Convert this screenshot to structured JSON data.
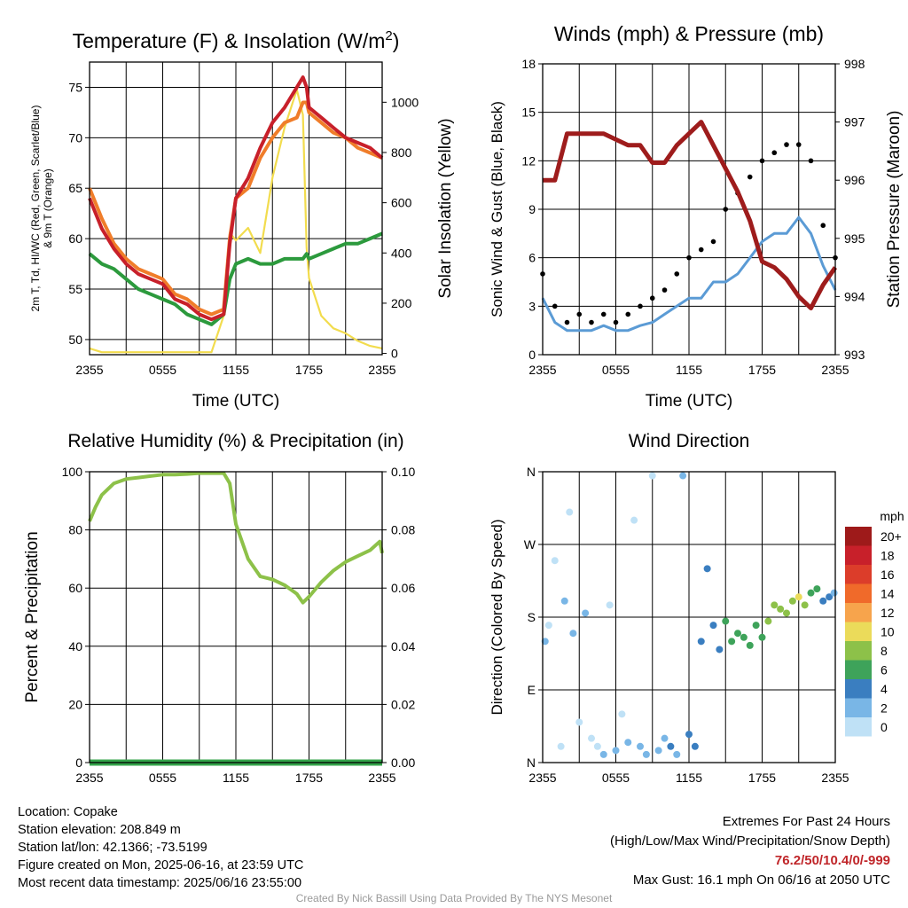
{
  "chart_data": [
    {
      "type": "line",
      "title": "Temperature (F) & Insolation (W/m²)",
      "xlabel": "Time (UTC)",
      "ylabel_lines": [
        "2m T, Td, HI/WC (Red, Green, Scarlet/Blue)",
        "& 9m T (Orange)"
      ],
      "ylabel2": "Solar Insolation (Yellow)",
      "xticks": [
        "2355",
        "0555",
        "1155",
        "1755",
        "2355"
      ],
      "yticks": [
        50,
        55,
        60,
        65,
        70,
        75
      ],
      "ylim": [
        48.5,
        77.5
      ],
      "y2ticks": [
        0,
        200,
        400,
        600,
        800,
        1000
      ],
      "y2lim": [
        -5,
        1160
      ],
      "grid": true,
      "x_hours": [
        0,
        1,
        2,
        3,
        4,
        5,
        6,
        7,
        8,
        9,
        10,
        11,
        11.5,
        12,
        13,
        14,
        15,
        16,
        17,
        17.5,
        17.8,
        18,
        19,
        20,
        21,
        22,
        23,
        24
      ],
      "series": [
        {
          "color": "#2c9a3d",
          "values": [
            58.5,
            57.5,
            57.0,
            56.0,
            55.0,
            54.5,
            54.0,
            53.5,
            52.5,
            52.0,
            51.5,
            52.5,
            56.0,
            57.5,
            58.0,
            57.5,
            57.5,
            58.0,
            58.0,
            58.0,
            58.5,
            58.0,
            58.5,
            59.0,
            59.5,
            59.5,
            60.0,
            60.5
          ]
        },
        {
          "color": "#f07d2a",
          "values": [
            65.0,
            62.0,
            59.5,
            58.0,
            57.0,
            56.5,
            56.0,
            54.5,
            54.0,
            53.0,
            52.5,
            53.0,
            60.0,
            64.0,
            65.0,
            68.0,
            70.0,
            71.5,
            72.0,
            73.5,
            73.5,
            72.5,
            71.5,
            70.5,
            70.0,
            69.0,
            68.5,
            68.0
          ]
        },
        {
          "color": "#c8202a",
          "values": [
            64.0,
            61.0,
            59.0,
            57.5,
            56.5,
            56.0,
            55.5,
            54.0,
            53.5,
            52.5,
            52.0,
            52.5,
            59.5,
            64.0,
            66.0,
            69.0,
            71.5,
            73.0,
            75.0,
            76.0,
            75.0,
            73.0,
            72.0,
            71.0,
            70.0,
            69.5,
            69.0,
            68.0
          ]
        },
        {
          "color": "#f2dc4e",
          "axis": "y2",
          "values": [
            20,
            5,
            5,
            5,
            5,
            5,
            5,
            5,
            5,
            5,
            5,
            150,
            480,
            450,
            500,
            400,
            700,
            900,
            1050,
            950,
            420,
            300,
            150,
            100,
            80,
            50,
            30,
            20
          ]
        }
      ]
    },
    {
      "type": "line",
      "title": "Winds (mph) & Pressure (mb)",
      "xlabel": "Time (UTC)",
      "ylabel": "Sonic Wind & Gust (Blue, Black)",
      "ylabel2": "Station Pressure (Maroon)",
      "xticks": [
        "2355",
        "0555",
        "1155",
        "1755",
        "2355"
      ],
      "yticks": [
        0,
        3,
        6,
        9,
        12,
        15,
        18
      ],
      "ylim": [
        0,
        18
      ],
      "y2ticks": [
        993,
        994,
        995,
        996,
        997,
        998
      ],
      "y2lim": [
        993,
        998
      ],
      "grid": true,
      "x_hours": [
        0,
        1,
        2,
        3,
        4,
        5,
        6,
        7,
        8,
        9,
        10,
        11,
        12,
        13,
        14,
        15,
        16,
        17,
        18,
        19,
        20,
        21,
        22,
        23,
        24
      ],
      "series": [
        {
          "color": "#5b9bd5",
          "values": [
            3.5,
            2.0,
            1.5,
            1.5,
            1.5,
            1.8,
            1.5,
            1.5,
            1.8,
            2.0,
            2.5,
            3.0,
            3.5,
            3.5,
            4.5,
            4.5,
            5.0,
            6.0,
            7.0,
            7.5,
            7.5,
            8.5,
            7.5,
            5.5,
            4.0
          ]
        },
        {
          "color": "#000000",
          "mode": "points",
          "values": [
            5.0,
            3.0,
            2.0,
            2.5,
            2.0,
            2.5,
            2.0,
            2.5,
            3.0,
            3.5,
            4.0,
            5.0,
            6.0,
            6.5,
            7.0,
            9.0,
            10.0,
            11.0,
            12.0,
            12.5,
            13.0,
            13.0,
            12.0,
            8.0,
            6.0
          ]
        },
        {
          "color": "#9e1c1c",
          "axis": "y2",
          "values": [
            996.0,
            996.0,
            996.8,
            996.8,
            996.8,
            996.8,
            996.7,
            996.6,
            996.6,
            996.3,
            996.3,
            996.6,
            996.8,
            997.0,
            996.6,
            996.2,
            995.8,
            995.3,
            994.6,
            994.5,
            994.3,
            994.0,
            993.8,
            994.2,
            994.5
          ]
        }
      ]
    },
    {
      "type": "line",
      "title": "Relative Humidity (%) & Precipitation (in)",
      "ylabel": "Percent & Precipitation",
      "xticks": [
        "2355",
        "0555",
        "1155",
        "1755",
        "2355"
      ],
      "yticks": [
        0,
        20,
        40,
        60,
        80,
        100
      ],
      "ylim": [
        0,
        100
      ],
      "y2ticks": [
        "0.00",
        "0.02",
        "0.04",
        "0.06",
        "0.08",
        "0.10"
      ],
      "y2lim": [
        0,
        0.1
      ],
      "grid": true,
      "x_hours": [
        0,
        0.5,
        1,
        2,
        3,
        4,
        5,
        6,
        7,
        8,
        9,
        10,
        11,
        11.5,
        12,
        13,
        14,
        15,
        16,
        17,
        17.5,
        18,
        19,
        20,
        21,
        22,
        23,
        23.8,
        24
      ],
      "series": [
        {
          "color": "#8dc149",
          "values": [
            83,
            88,
            92,
            96,
            97.5,
            98,
            98.5,
            99,
            99,
            99.2,
            99.5,
            99.5,
            99.5,
            96,
            82,
            70,
            64,
            63,
            61,
            58,
            55,
            57,
            62,
            66,
            69,
            71,
            73,
            76,
            72
          ]
        },
        {
          "color": "#33a34a",
          "axis": "y2",
          "values": [
            0,
            0,
            0,
            0,
            0,
            0,
            0,
            0,
            0,
            0,
            0,
            0,
            0,
            0,
            0,
            0,
            0,
            0,
            0,
            0,
            0,
            0,
            0,
            0,
            0,
            0,
            0,
            0,
            0
          ]
        }
      ]
    },
    {
      "type": "scatter",
      "title": "Wind Direction",
      "ylabel": "Direction (Colored By Speed)",
      "xticks": [
        "2355",
        "0555",
        "1155",
        "1755",
        "2355"
      ],
      "yticks": [
        "N",
        "E",
        "S",
        "W",
        "N"
      ],
      "ylim": [
        0,
        360
      ],
      "grid": true,
      "points_hours": [
        0.2,
        0.5,
        1.0,
        1.5,
        1.8,
        2.2,
        2.5,
        3.0,
        3.5,
        4.0,
        4.5,
        5.0,
        5.5,
        6.0,
        6.5,
        7.0,
        7.5,
        8.0,
        8.5,
        9.0,
        9.5,
        10.0,
        10.5,
        11.0,
        11.5,
        12.0,
        12.5,
        13.0,
        13.5,
        14.0,
        14.5,
        15.0,
        15.5,
        16.0,
        16.5,
        17.0,
        17.5,
        18.0,
        18.5,
        19.0,
        19.5,
        20.0,
        20.5,
        21.0,
        21.5,
        22.0,
        22.5,
        23.0,
        23.5,
        23.9
      ],
      "points_dir": [
        150,
        170,
        250,
        20,
        200,
        310,
        160,
        50,
        185,
        30,
        20,
        10,
        195,
        15,
        60,
        25,
        300,
        20,
        10,
        355,
        15,
        30,
        20,
        10,
        355,
        35,
        20,
        150,
        240,
        170,
        140,
        175,
        150,
        160,
        155,
        145,
        170,
        155,
        175,
        195,
        190,
        185,
        200,
        205,
        195,
        210,
        215,
        200,
        205,
        210
      ],
      "points_speed": [
        3,
        1,
        1,
        1,
        3,
        1,
        3,
        0,
        2,
        1,
        1,
        2,
        0,
        2,
        1,
        3,
        0,
        3,
        2,
        1,
        3,
        3,
        4,
        3,
        3,
        4,
        4,
        4,
        4,
        5,
        5,
        6,
        7,
        7,
        6,
        6,
        7,
        7,
        8,
        8,
        9,
        9,
        9,
        10,
        8,
        7,
        6,
        4,
        4,
        3
      ],
      "colorbar": {
        "title": "mph",
        "labels": [
          "20+",
          "18",
          "16",
          "14",
          "12",
          "10",
          "8",
          "6",
          "4",
          "2",
          "0"
        ],
        "colors": [
          "#9e1a1a",
          "#c8202a",
          "#dc3d2a",
          "#f06a2a",
          "#f7a44c",
          "#ebdb5a",
          "#8dc149",
          "#3ea35a",
          "#3a7ec0",
          "#79b6e6",
          "#bfe1f6"
        ]
      }
    }
  ],
  "info": {
    "location": "Location: Copake",
    "elevation": "Station elevation: 208.849 m",
    "latlon": "Station lat/lon: 42.1366; -73.5199",
    "created": "Figure created on Mon, 2025-06-16, at 23:59 UTC",
    "recent": "Most recent data timestamp: 2025/06/16 23:55:00"
  },
  "extremes": {
    "title": "Extremes For Past 24 Hours",
    "legend": "(High/Low/Max Wind/Precipitation/Snow Depth)",
    "values": "76.2/50/10.4/0/-999",
    "gust": "Max Gust: 16.1 mph On 06/16 at 2050 UTC"
  },
  "credit": "Created By Nick Bassill Using Data Provided By The NYS Mesonet"
}
